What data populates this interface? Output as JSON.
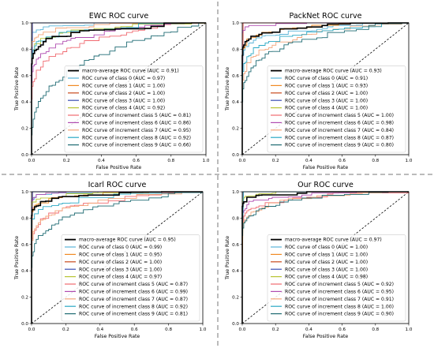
{
  "chart_data": [
    {
      "type": "line",
      "title": "EWC ROC curve",
      "xlabel": "False Positive Rate",
      "ylabel": "True Positive Rate",
      "xlim": [
        0,
        1
      ],
      "ylim": [
        0,
        1
      ],
      "ticks": [
        "0.0",
        "0.2",
        "0.4",
        "0.6",
        "0.8",
        "1.0"
      ],
      "legend_position": "lower right",
      "series": [
        {
          "name": "macro-average ROC curve (AUC = 0.91)",
          "auc": 0.91,
          "color": "#000000"
        },
        {
          "name": "ROC curve of class 0 (AUC = 0.97)",
          "auc": 0.97,
          "color": "#5ab4d8"
        },
        {
          "name": "ROC curve of class 1 (AUC = 1.00)",
          "auc": 1.0,
          "color": "#f08a24"
        },
        {
          "name": "ROC curve of class 2 (AUC = 1.00)",
          "auc": 1.0,
          "color": "#c84a1c"
        },
        {
          "name": "ROC curve of class 3 (AUC = 1.00)",
          "auc": 1.0,
          "color": "#3a4fb4"
        },
        {
          "name": "ROC curve of class 4 (AUC = 0.92)",
          "auc": 0.92,
          "color": "#b8c434"
        },
        {
          "name": "ROC curve of increment class 5 (AUC = 0.81)",
          "auc": 0.81,
          "color": "#f06a70"
        },
        {
          "name": "ROC curve of increment class 6 (AUC = 0.86)",
          "auc": 0.86,
          "color": "#b04cb0"
        },
        {
          "name": "ROC curve of increment class 7 (AUC = 0.95)",
          "auc": 0.95,
          "color": "#f4a57a"
        },
        {
          "name": "ROC curve of increment class 8 (AUC = 0.92)",
          "auc": 0.92,
          "color": "#2aa8c4"
        },
        {
          "name": "ROC curve of increment class 9 (AUC = 0.66)",
          "auc": 0.66,
          "color": "#1f6b73"
        }
      ]
    },
    {
      "type": "line",
      "title": "PackNet ROC curve",
      "xlabel": "False Positive Rate",
      "ylabel": "True Positive Rate",
      "xlim": [
        0,
        1
      ],
      "ylim": [
        0,
        1
      ],
      "ticks": [
        "0.0",
        "0.2",
        "0.4",
        "0.6",
        "0.8",
        "1.0"
      ],
      "legend_position": "lower right",
      "series": [
        {
          "name": "macro-average ROC curve (AUC = 0.93)",
          "auc": 0.93,
          "color": "#000000"
        },
        {
          "name": "ROC curve of class 0 (AUC = 0.91)",
          "auc": 0.91,
          "color": "#5ab4d8"
        },
        {
          "name": "ROC curve of class 1 (AUC = 0.93)",
          "auc": 0.93,
          "color": "#f08a24"
        },
        {
          "name": "ROC curve of class 2 (AUC = 1.00)",
          "auc": 1.0,
          "color": "#c84a1c"
        },
        {
          "name": "ROC curve of class 3 (AUC = 1.00)",
          "auc": 1.0,
          "color": "#3a4fb4"
        },
        {
          "name": "ROC curve of class 4 (AUC = 1.00)",
          "auc": 1.0,
          "color": "#b8c434"
        },
        {
          "name": "ROC curve of increment class 5 (AUC = 1.00)",
          "auc": 1.0,
          "color": "#f06a70"
        },
        {
          "name": "ROC curve of increment class 6 (AUC = 0.98)",
          "auc": 0.98,
          "color": "#b04cb0"
        },
        {
          "name": "ROC curve of increment class 7 (AUC = 0.84)",
          "auc": 0.84,
          "color": "#f4a57a"
        },
        {
          "name": "ROC curve of increment class 8 (AUC = 0.87)",
          "auc": 0.87,
          "color": "#2aa8c4"
        },
        {
          "name": "ROC curve of increment class 9 (AUC = 0.80)",
          "auc": 0.8,
          "color": "#1f6b73"
        }
      ]
    },
    {
      "type": "line",
      "title": "Icarl ROC curve",
      "xlabel": "False Positive Rate",
      "ylabel": "True Positive Rate",
      "xlim": [
        0,
        1
      ],
      "ylim": [
        0,
        1
      ],
      "ticks": [
        "0.0",
        "0.2",
        "0.4",
        "0.6",
        "0.8",
        "1.0"
      ],
      "legend_position": "lower right",
      "series": [
        {
          "name": "macro-average ROC curve (AUC = 0.95)",
          "auc": 0.95,
          "color": "#000000"
        },
        {
          "name": "ROC curve of class 0 (AUC = 0.99)",
          "auc": 0.99,
          "color": "#5ab4d8"
        },
        {
          "name": "ROC curve of class 1 (AUC = 0.95)",
          "auc": 0.95,
          "color": "#f08a24"
        },
        {
          "name": "ROC curve of class 2 (AUC = 1.00)",
          "auc": 1.0,
          "color": "#c84a1c"
        },
        {
          "name": "ROC curve of class 3 (AUC = 1.00)",
          "auc": 1.0,
          "color": "#3a4fb4"
        },
        {
          "name": "ROC curve of class 4 (AUC = 0.97)",
          "auc": 0.97,
          "color": "#b8c434"
        },
        {
          "name": "ROC curve of increment class 5 (AUC = 0.87)",
          "auc": 0.87,
          "color": "#f06a70"
        },
        {
          "name": "ROC curve of increment class 6 (AUC = 0.99)",
          "auc": 0.99,
          "color": "#b04cb0"
        },
        {
          "name": "ROC curve of increment class 7 (AUC = 0.87)",
          "auc": 0.87,
          "color": "#f4a57a"
        },
        {
          "name": "ROC curve of increment class 8 (AUC = 0.92)",
          "auc": 0.92,
          "color": "#2aa8c4"
        },
        {
          "name": "ROC curve of increment class 9 (AUC = 0.81)",
          "auc": 0.81,
          "color": "#1f6b73"
        }
      ]
    },
    {
      "type": "line",
      "title": "Our ROC curve",
      "xlabel": "False Positive Rate",
      "ylabel": "True Positive Rate",
      "xlim": [
        0,
        1
      ],
      "ylim": [
        0,
        1
      ],
      "ticks": [
        "0.0",
        "0.2",
        "0.4",
        "0.6",
        "0.8",
        "1.0"
      ],
      "legend_position": "lower right",
      "series": [
        {
          "name": "macro-average ROC curve (AUC = 0.97)",
          "auc": 0.97,
          "color": "#000000"
        },
        {
          "name": "ROC curve of class 0 (AUC = 1.00)",
          "auc": 1.0,
          "color": "#5ab4d8"
        },
        {
          "name": "ROC curve of class 1 (AUC = 1.00)",
          "auc": 1.0,
          "color": "#f08a24"
        },
        {
          "name": "ROC curve of class 2 (AUC = 1.00)",
          "auc": 1.0,
          "color": "#c84a1c"
        },
        {
          "name": "ROC curve of class 3 (AUC = 1.00)",
          "auc": 1.0,
          "color": "#3a4fb4"
        },
        {
          "name": "ROC curve of class 4 (AUC = 0.98)",
          "auc": 0.98,
          "color": "#b8c434"
        },
        {
          "name": "ROC curve of increment class 5 (AUC = 0.92)",
          "auc": 0.92,
          "color": "#f06a70"
        },
        {
          "name": "ROC curve of increment class 6 (AUC = 0.95)",
          "auc": 0.95,
          "color": "#b04cb0"
        },
        {
          "name": "ROC curve of increment class 7 (AUC = 0.91)",
          "auc": 0.91,
          "color": "#f4a57a"
        },
        {
          "name": "ROC curve of increment class 8 (AUC = 1.00)",
          "auc": 1.0,
          "color": "#2aa8c4"
        },
        {
          "name": "ROC curve of increment class 9 (AUC = 0.90)",
          "auc": 0.9,
          "color": "#1f6b73"
        }
      ]
    }
  ]
}
